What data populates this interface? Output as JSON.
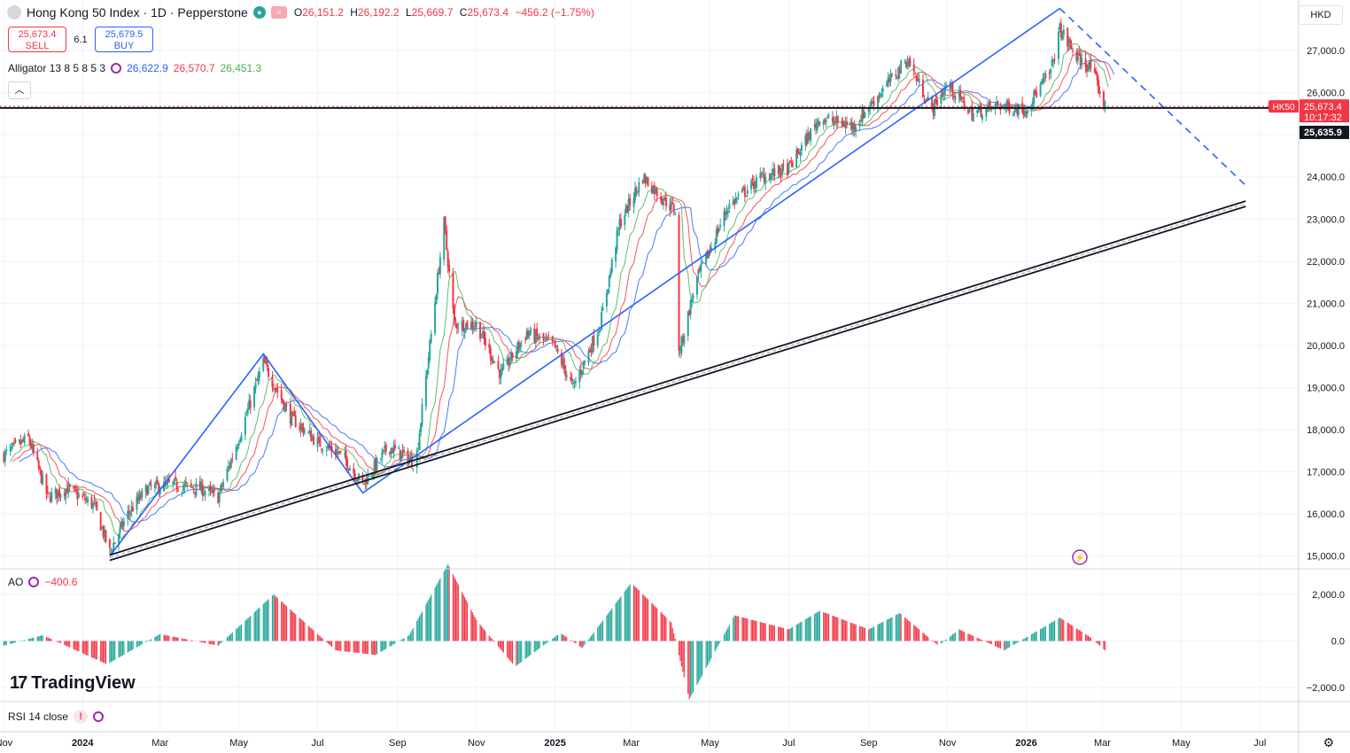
{
  "header": {
    "title": "Hong Kong 50 Index · 1D · Pepperstone",
    "ohlc": {
      "o_label": "O",
      "o": "26,151.2",
      "h_label": "H",
      "h": "26,192.2",
      "l_label": "L",
      "l": "25,669.7",
      "c_label": "C",
      "c": "25,673.4",
      "change": "−456.2 (−1.75%)"
    }
  },
  "trade": {
    "sell_price": "25,673.4",
    "sell_label": "SELL",
    "spread": "6.1",
    "buy_price": "25,679.5",
    "buy_label": "BUY"
  },
  "alligator": {
    "label": "Alligator 13 8 5 8 5 3",
    "jaw": "26,622.9",
    "teeth": "26,570.7",
    "lips": "26,451.3"
  },
  "ao": {
    "label": "AO",
    "value": "−400.6"
  },
  "rsi": {
    "label": "RSI 14 close"
  },
  "currency": "HKD",
  "logo": "TradingView",
  "price_tags": {
    "symbol": "HK50",
    "last": "25,673.4",
    "countdown": "10:17:32",
    "line": "25,635.9"
  },
  "colors": {
    "up": "#26a69a",
    "down": "#f23645",
    "jaw": "#2962ff",
    "teeth": "#f23645",
    "lips": "#4caf50",
    "trend": "#2962ff",
    "channel": "#131722"
  },
  "chart_data": [
    {
      "type": "candlestick",
      "title": "Hong Kong 50 Index · 1D · Pepperstone",
      "ylabel": "HKD",
      "ylim": [
        14700,
        28200
      ],
      "y_ticks": [
        "15,000.0",
        "16,000.0",
        "17,000.0",
        "18,000.0",
        "19,000.0",
        "20,000.0",
        "21,000.0",
        "22,000.0",
        "23,000.0",
        "24,000.0",
        "25,000.0",
        "26,000.0",
        "27,000.0"
      ],
      "x_ticks": [
        "Nov",
        "2024",
        "Mar",
        "May",
        "Jul",
        "Sep",
        "Nov",
        "2025",
        "Mar",
        "May",
        "Jul",
        "Sep",
        "Nov",
        "2026",
        "Mar",
        "May",
        "Jul"
      ],
      "close_path": [
        [
          "2023-11-01",
          17400
        ],
        [
          "2023-11-20",
          17800
        ],
        [
          "2023-12-05",
          16400
        ],
        [
          "2023-12-20",
          16600
        ],
        [
          "2024-01-10",
          16200
        ],
        [
          "2024-01-22",
          15100
        ],
        [
          "2024-02-05",
          16000
        ],
        [
          "2024-02-20",
          16600
        ],
        [
          "2024-03-10",
          16700
        ],
        [
          "2024-04-01",
          16600
        ],
        [
          "2024-04-15",
          16400
        ],
        [
          "2024-05-01",
          17800
        ],
        [
          "2024-05-20",
          19600
        ],
        [
          "2024-06-10",
          18300
        ],
        [
          "2024-07-01",
          17700
        ],
        [
          "2024-07-20",
          17400
        ],
        [
          "2024-08-05",
          16700
        ],
        [
          "2024-08-25",
          17600
        ],
        [
          "2024-09-15",
          17200
        ],
        [
          "2024-09-26",
          20000
        ],
        [
          "2024-10-07",
          22900
        ],
        [
          "2024-10-15",
          20500
        ],
        [
          "2024-11-01",
          20500
        ],
        [
          "2024-11-20",
          19300
        ],
        [
          "2024-12-10",
          20300
        ],
        [
          "2024-12-31",
          20000
        ],
        [
          "2025-01-15",
          19000
        ],
        [
          "2025-02-05",
          20500
        ],
        [
          "2025-02-20",
          22900
        ],
        [
          "2025-03-10",
          24000
        ],
        [
          "2025-03-25",
          23500
        ],
        [
          "2025-04-04",
          23200
        ],
        [
          "2025-04-07",
          19800
        ],
        [
          "2025-04-20",
          21500
        ],
        [
          "2025-05-15",
          23300
        ],
        [
          "2025-06-10",
          24000
        ],
        [
          "2025-07-01",
          24200
        ],
        [
          "2025-07-25",
          25400
        ],
        [
          "2025-08-20",
          25200
        ],
        [
          "2025-09-10",
          26000
        ],
        [
          "2025-10-01",
          26800
        ],
        [
          "2025-10-10",
          26200
        ],
        [
          "2025-10-20",
          25600
        ],
        [
          "2025-11-01",
          26200
        ],
        [
          "2025-11-20",
          25500
        ],
        [
          "2025-12-10",
          25700
        ],
        [
          "2025-12-31",
          25600
        ],
        [
          "2026-01-20",
          26500
        ],
        [
          "2026-01-27",
          27500
        ],
        [
          "2026-02-10",
          26800
        ],
        [
          "2026-02-20",
          26600
        ],
        [
          "2026-03-03",
          25673
        ]
      ],
      "alligator": {
        "jaw_period": 13,
        "teeth_period": 8,
        "lips_period": 5,
        "last_jaw": 26622.9,
        "last_teeth": 26570.7,
        "last_lips": 26451.3
      },
      "drawings": {
        "zigzag": [
          [
            "2024-01-22",
            15000
          ],
          [
            "2024-05-20",
            19800
          ],
          [
            "2024-08-05",
            16500
          ],
          [
            "2026-01-27",
            28000
          ]
        ],
        "projection": [
          [
            "2026-01-27",
            28000
          ],
          [
            "2026-06-20",
            23800
          ]
        ],
        "parallel_channel": [
          [
            "2024-01-22",
            14900
          ],
          [
            "2026-06-20",
            23300
          ]
        ],
        "horizontal_line": 25635.9
      }
    },
    {
      "type": "bar",
      "title": "AO",
      "ylim": [
        -2600,
        3100
      ],
      "y_ticks": [
        "−2,000.0",
        "0.0",
        "2,000.0"
      ],
      "last_value": -400.6,
      "profile": [
        [
          "2023-11-01",
          -200
        ],
        [
          "2023-12-01",
          250
        ],
        [
          "2024-01-20",
          -1000
        ],
        [
          "2024-03-01",
          300
        ],
        [
          "2024-04-15",
          -200
        ],
        [
          "2024-05-28",
          2000
        ],
        [
          "2024-07-15",
          -400
        ],
        [
          "2024-08-15",
          -600
        ],
        [
          "2024-09-10",
          250
        ],
        [
          "2024-10-10",
          3300
        ],
        [
          "2024-11-01",
          900
        ],
        [
          "2024-12-01",
          -1100
        ],
        [
          "2025-01-05",
          350
        ],
        [
          "2025-01-22",
          -300
        ],
        [
          "2025-03-01",
          2500
        ],
        [
          "2025-04-01",
          800
        ],
        [
          "2025-04-15",
          -2500
        ],
        [
          "2025-05-20",
          1100
        ],
        [
          "2025-07-01",
          500
        ],
        [
          "2025-07-25",
          1300
        ],
        [
          "2025-09-01",
          500
        ],
        [
          "2025-09-25",
          1200
        ],
        [
          "2025-10-25",
          -200
        ],
        [
          "2025-11-10",
          500
        ],
        [
          "2025-12-15",
          -400
        ],
        [
          "2026-01-27",
          1000
        ],
        [
          "2026-02-20",
          150
        ],
        [
          "2026-03-03",
          -400
        ]
      ]
    }
  ]
}
